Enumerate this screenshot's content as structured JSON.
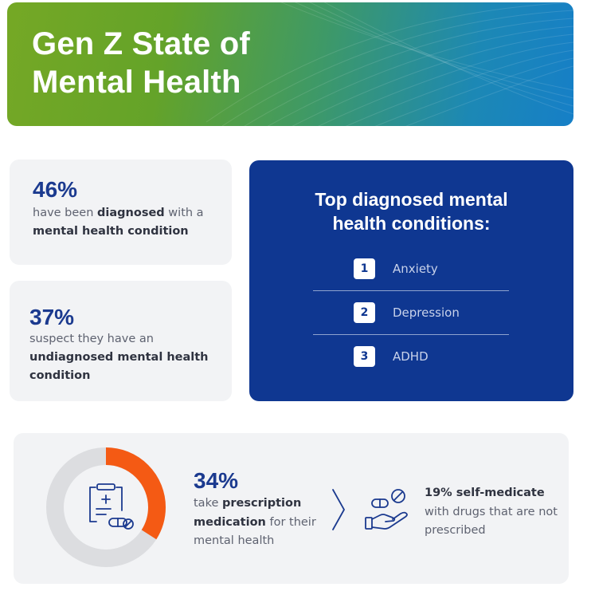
{
  "header": {
    "title_line1": "Gen Z State of",
    "title_line2": "Mental Health"
  },
  "stat_diagnosed": {
    "percent": "46%",
    "text_pre": "have been ",
    "text_bold1": "diagnosed",
    "text_mid": " with a ",
    "text_bold2": "mental health condition"
  },
  "stat_suspect": {
    "percent": "37%",
    "text_pre": "suspect they have an ",
    "text_bold": "undiagnosed mental health condition"
  },
  "top_conditions": {
    "title_line1": "Top diagnosed mental",
    "title_line2": "health conditions:",
    "items": [
      {
        "rank": "1",
        "label": "Anxiety"
      },
      {
        "rank": "2",
        "label": "Depression"
      },
      {
        "rank": "3",
        "label": "ADHD"
      }
    ]
  },
  "stat_prescription": {
    "percent": "34%",
    "percent_value": 34,
    "text_pre": "take ",
    "text_bold": "prescription medication",
    "text_post": " for their mental health"
  },
  "stat_self_medicate": {
    "text_bold": "19% self-medicate",
    "text_post": " with drugs that are not prescribed"
  },
  "icons": {
    "prescription": "prescription-clipboard-icon",
    "chevron": "chevron-right-icon",
    "hand_pills": "hand-with-pills-icon"
  },
  "colors": {
    "navy": "#0f3791",
    "heading_blue": "#1b3a8f",
    "accent_orange": "#f45a14",
    "donut_track": "#dcdde0",
    "card_bg": "#f2f3f5"
  }
}
